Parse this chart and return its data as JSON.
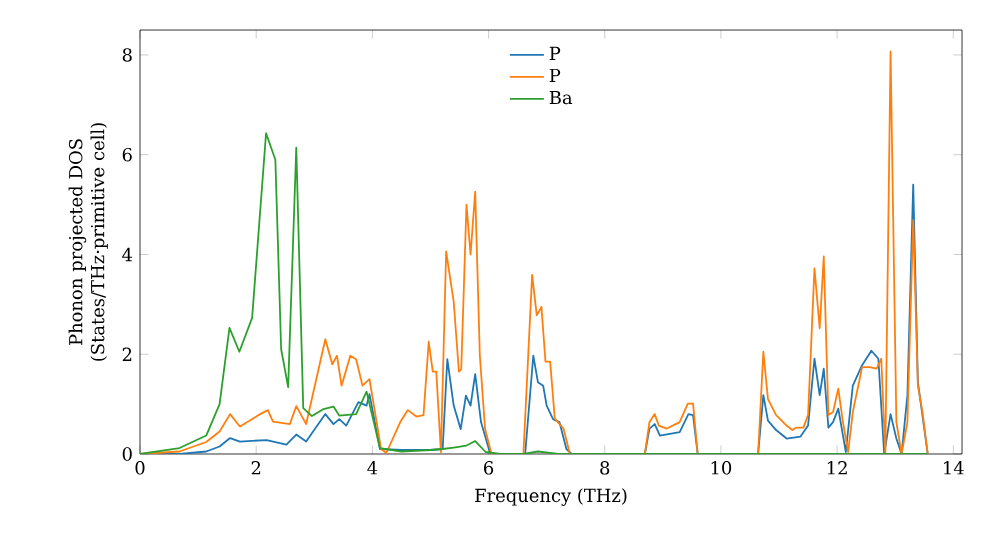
{
  "chart_data": {
    "type": "line",
    "xlabel": "Frequency (THz)",
    "ylabel": "Phonon projected DOS (States/THz·primitive cell)",
    "xlim": [
      0,
      14.15
    ],
    "ylim": [
      0,
      8.5
    ],
    "xticks": [
      0,
      2,
      4,
      6,
      8,
      10,
      12,
      14
    ],
    "yticks": [
      0,
      2,
      4,
      6,
      8
    ],
    "grid": false,
    "legend": "top",
    "marker": "none",
    "line_style": "solid",
    "series": [
      {
        "name": "P",
        "color": "#1f77b4",
        "x": [
          0,
          0.68,
          1.14,
          1.37,
          1.55,
          1.72,
          2.18,
          2.52,
          2.69,
          2.86,
          3.19,
          3.33,
          3.43,
          3.55,
          3.76,
          3.9,
          3.95,
          4.13,
          4.5,
          5.0,
          5.21,
          5.29,
          5.4,
          5.52,
          5.61,
          5.69,
          5.77,
          5.87,
          6.03,
          6.63,
          6.77,
          6.85,
          6.94,
          7.0,
          7.11,
          7.22,
          7.34,
          7.43,
          8.69,
          8.77,
          8.86,
          8.95,
          9.29,
          9.44,
          9.52,
          9.6,
          10.64,
          10.73,
          10.81,
          10.95,
          11.13,
          11.37,
          11.5,
          11.61,
          11.7,
          11.77,
          11.85,
          11.93,
          12.02,
          12.15,
          12.27,
          12.43,
          12.59,
          12.71,
          12.81,
          12.92,
          13.02,
          13.11,
          13.21,
          13.31,
          13.39,
          13.56
        ],
        "values": [
          0,
          0,
          0.05,
          0.15,
          0.32,
          0.25,
          0.28,
          0.19,
          0.39,
          0.25,
          0.8,
          0.6,
          0.7,
          0.57,
          1.04,
          0.97,
          1.2,
          0.1,
          0.08,
          0.08,
          0.1,
          1.9,
          0.97,
          0.5,
          1.17,
          0.97,
          1.6,
          0.64,
          0,
          0,
          1.97,
          1.44,
          1.37,
          0.97,
          0.7,
          0.64,
          0.1,
          0,
          0,
          0.51,
          0.6,
          0.37,
          0.44,
          0.8,
          0.78,
          0,
          0,
          1.18,
          0.67,
          0.48,
          0.31,
          0.35,
          0.57,
          1.91,
          1.18,
          1.71,
          0.53,
          0.64,
          0.91,
          0.04,
          1.37,
          1.78,
          2.07,
          1.91,
          0,
          0.8,
          0.31,
          0,
          1.18,
          5.4,
          1.44,
          0
        ]
      },
      {
        "name": "P",
        "color": "#ff7f0e",
        "x": [
          0,
          0.68,
          1.14,
          1.37,
          1.55,
          1.72,
          2.07,
          2.2,
          2.29,
          2.58,
          2.69,
          2.86,
          3.19,
          3.31,
          3.39,
          3.47,
          3.62,
          3.72,
          3.83,
          3.95,
          4.15,
          4.24,
          4.48,
          4.61,
          4.76,
          4.88,
          4.97,
          5.04,
          5.1,
          5.18,
          5.27,
          5.4,
          5.49,
          5.53,
          5.62,
          5.69,
          5.77,
          5.85,
          5.94,
          6.05,
          6.6,
          6.75,
          6.83,
          6.91,
          6.98,
          7.06,
          7.14,
          7.29,
          7.4,
          8.69,
          8.77,
          8.86,
          8.93,
          9.07,
          9.29,
          9.43,
          9.52,
          9.6,
          10.64,
          10.73,
          10.81,
          10.95,
          11.13,
          11.23,
          11.3,
          11.42,
          11.5,
          11.61,
          11.7,
          11.77,
          11.85,
          11.93,
          12.02,
          12.1,
          12.19,
          12.27,
          12.43,
          12.56,
          12.68,
          12.76,
          12.83,
          12.92,
          13.02,
          13.11,
          13.21,
          13.31,
          13.39,
          13.47,
          13.56
        ],
        "values": [
          0,
          0.05,
          0.24,
          0.45,
          0.8,
          0.55,
          0.8,
          0.88,
          0.65,
          0.6,
          0.96,
          0.6,
          2.3,
          1.8,
          1.97,
          1.37,
          1.97,
          1.9,
          1.37,
          1.5,
          0.1,
          0.02,
          0.64,
          0.88,
          0.75,
          0.78,
          2.25,
          1.65,
          1.65,
          0.04,
          4.06,
          3.05,
          1.65,
          1.7,
          5.0,
          4.0,
          5.26,
          1.97,
          0.5,
          0,
          0,
          3.59,
          2.78,
          2.95,
          1.85,
          1.85,
          0.71,
          0.51,
          0,
          0,
          0.64,
          0.8,
          0.57,
          0.51,
          0.64,
          1.01,
          1.01,
          0,
          0,
          2.05,
          1.1,
          0.78,
          0.57,
          0.48,
          0.53,
          0.53,
          0.78,
          3.72,
          2.52,
          3.96,
          0.78,
          0.84,
          1.31,
          0.64,
          0.04,
          0.84,
          1.74,
          1.74,
          1.71,
          1.91,
          0,
          8.07,
          0.64,
          0,
          0.64,
          4.69,
          1.37,
          0.84,
          0
        ]
      },
      {
        "name": "Ba",
        "color": "#2ca02c",
        "x": [
          0,
          0.68,
          1.14,
          1.37,
          1.54,
          1.71,
          1.93,
          2.17,
          2.33,
          2.43,
          2.55,
          2.69,
          2.81,
          2.96,
          3.16,
          3.33,
          3.43,
          3.72,
          3.9,
          4.13,
          4.5,
          5.0,
          5.21,
          5.4,
          5.62,
          5.77,
          5.95,
          6.2,
          6.6,
          6.85,
          7.2,
          13.56
        ],
        "values": [
          0,
          0.12,
          0.37,
          1.0,
          2.53,
          2.05,
          2.73,
          6.43,
          5.9,
          2.1,
          1.34,
          6.14,
          0.92,
          0.76,
          0.9,
          0.95,
          0.77,
          0.8,
          1.25,
          0.12,
          0.05,
          0.08,
          0.1,
          0.13,
          0.17,
          0.26,
          0.04,
          0,
          0,
          0.05,
          0,
          0
        ]
      }
    ]
  }
}
